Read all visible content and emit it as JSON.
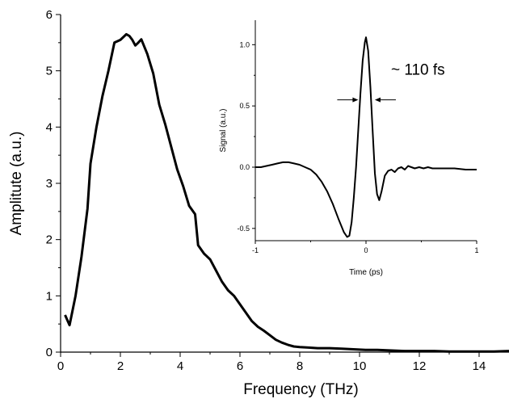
{
  "chart_data": [
    {
      "type": "line",
      "title": "",
      "xlabel": "Frequency (THz)",
      "ylabel": "Amplitute (a.u.)",
      "xlim": [
        0,
        15
      ],
      "ylim": [
        0,
        6
      ],
      "xticks": [
        0,
        2,
        4,
        6,
        8,
        10,
        12,
        14
      ],
      "yticks": [
        0,
        1,
        2,
        3,
        4,
        5,
        6
      ],
      "grid": false,
      "legend": "none",
      "line_color": "#000000",
      "x": [
        0.15,
        0.3,
        0.5,
        0.7,
        0.9,
        1.0,
        1.2,
        1.4,
        1.6,
        1.8,
        2.0,
        2.1,
        2.2,
        2.3,
        2.4,
        2.5,
        2.6,
        2.7,
        2.9,
        3.1,
        3.3,
        3.5,
        3.7,
        3.9,
        4.1,
        4.3,
        4.5,
        4.6,
        4.8,
        5.0,
        5.2,
        5.4,
        5.6,
        5.8,
        6.0,
        6.2,
        6.4,
        6.6,
        6.8,
        7.0,
        7.2,
        7.4,
        7.6,
        7.8,
        8.0,
        8.3,
        8.6,
        9.0,
        9.4,
        9.8,
        10.2,
        10.6,
        11.0,
        11.5,
        12.0,
        12.5,
        13.0,
        13.5,
        14.0,
        14.5,
        15.0
      ],
      "values": [
        0.66,
        0.48,
        1.0,
        1.7,
        2.55,
        3.35,
        4.0,
        4.55,
        5.0,
        5.5,
        5.55,
        5.6,
        5.65,
        5.62,
        5.55,
        5.45,
        5.5,
        5.56,
        5.3,
        4.95,
        4.4,
        4.05,
        3.65,
        3.25,
        2.95,
        2.6,
        2.45,
        1.9,
        1.75,
        1.65,
        1.45,
        1.25,
        1.1,
        1.0,
        0.85,
        0.7,
        0.55,
        0.45,
        0.38,
        0.3,
        0.22,
        0.17,
        0.13,
        0.1,
        0.09,
        0.08,
        0.07,
        0.07,
        0.06,
        0.05,
        0.04,
        0.04,
        0.03,
        0.02,
        0.02,
        0.02,
        0.01,
        0.01,
        0.01,
        0.01,
        0.02
      ]
    },
    {
      "type": "line",
      "title": "",
      "xlabel": "Time (ps)",
      "ylabel": "Signal (a.u.)",
      "xlim": [
        -1,
        1
      ],
      "ylim": [
        -0.6,
        1.2
      ],
      "xticks": [
        -1,
        0,
        1
      ],
      "yticks": [
        -0.5,
        0.0,
        0.5,
        1.0
      ],
      "ytick_labels": [
        "-0.5",
        "0.0",
        "0.5",
        "1.0"
      ],
      "grid": false,
      "legend": "none",
      "line_color": "#000000",
      "x": [
        -1.0,
        -0.95,
        -0.9,
        -0.85,
        -0.8,
        -0.75,
        -0.7,
        -0.65,
        -0.6,
        -0.55,
        -0.5,
        -0.45,
        -0.4,
        -0.35,
        -0.3,
        -0.25,
        -0.2,
        -0.17,
        -0.15,
        -0.13,
        -0.11,
        -0.09,
        -0.07,
        -0.05,
        -0.03,
        -0.01,
        0.0,
        0.02,
        0.04,
        0.06,
        0.08,
        0.1,
        0.12,
        0.14,
        0.17,
        0.2,
        0.23,
        0.26,
        0.29,
        0.32,
        0.35,
        0.38,
        0.41,
        0.44,
        0.48,
        0.52,
        0.56,
        0.6,
        0.7,
        0.8,
        0.9,
        1.0
      ],
      "values": [
        0.0,
        0.0,
        0.01,
        0.02,
        0.03,
        0.04,
        0.04,
        0.03,
        0.02,
        0.0,
        -0.02,
        -0.06,
        -0.12,
        -0.2,
        -0.3,
        -0.42,
        -0.53,
        -0.57,
        -0.56,
        -0.45,
        -0.25,
        0.0,
        0.3,
        0.6,
        0.87,
        1.02,
        1.06,
        0.95,
        0.65,
        0.3,
        -0.05,
        -0.22,
        -0.27,
        -0.2,
        -0.07,
        -0.03,
        -0.02,
        -0.04,
        -0.01,
        0.0,
        -0.02,
        0.01,
        0.0,
        -0.01,
        0.0,
        -0.01,
        0.0,
        -0.01,
        -0.01,
        -0.01,
        -0.02,
        -0.02
      ]
    }
  ],
  "annotation": {
    "text": "~ 110 fs",
    "x_left": -0.07,
    "x_right": 0.08,
    "y": 0.55
  }
}
